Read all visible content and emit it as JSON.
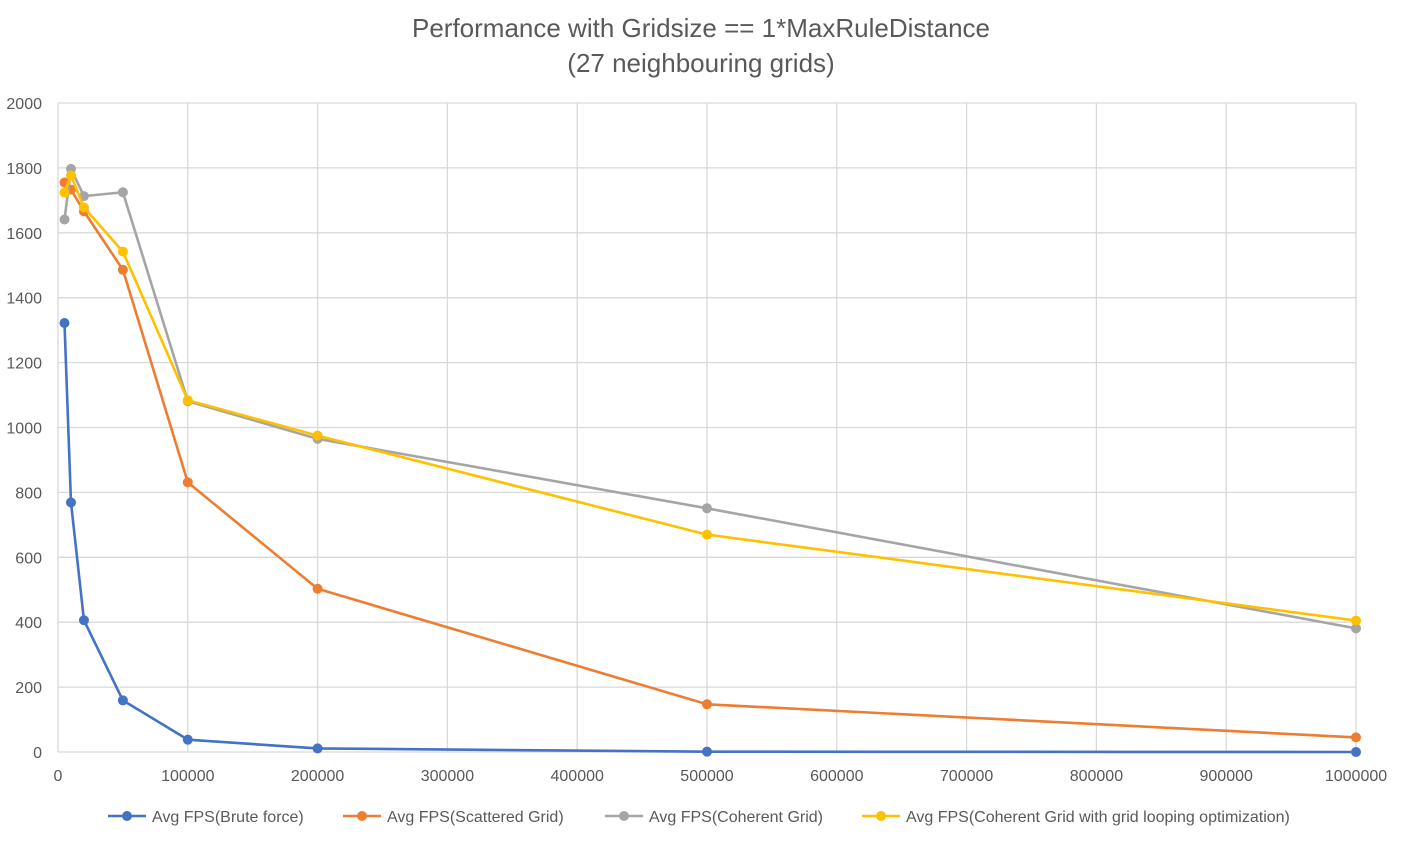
{
  "chart_data": {
    "type": "scatter",
    "title": "Performance with Gridsize == 1*MaxRuleDistance",
    "subtitle": "(27 neighbouring grids)",
    "xlabel": "",
    "ylabel": "",
    "xlim": [
      0,
      1000000
    ],
    "ylim": [
      0,
      2000
    ],
    "xticks": [
      0,
      100000,
      200000,
      300000,
      400000,
      500000,
      600000,
      700000,
      800000,
      900000,
      1000000
    ],
    "yticks": [
      0,
      200,
      400,
      600,
      800,
      1000,
      1200,
      1400,
      1600,
      1800,
      2000
    ],
    "grid": true,
    "legend_position": "bottom",
    "x": [
      5000,
      10000,
      20000,
      50000,
      100000,
      200000,
      500000,
      1000000
    ],
    "series": [
      {
        "name": "Avg FPS(Brute force)",
        "color": "#4472C4",
        "values": [
          1322,
          769,
          406,
          159,
          38,
          11,
          1,
          0
        ]
      },
      {
        "name": "Avg FPS(Scattered Grid)",
        "color": "#ED7D31",
        "values": [
          1755,
          1733,
          1666,
          1486,
          831,
          503,
          147,
          45
        ]
      },
      {
        "name": "Avg FPS(Coherent Grid)",
        "color": "#A5A5A5",
        "values": [
          1641,
          1797,
          1713,
          1725,
          1081,
          965,
          751,
          381
        ]
      },
      {
        "name": "Avg FPS(Coherent Grid with grid looping optimization)",
        "color": "#FFC000",
        "values": [
          1724,
          1777,
          1678,
          1542,
          1084,
          975,
          670,
          405
        ]
      }
    ]
  }
}
